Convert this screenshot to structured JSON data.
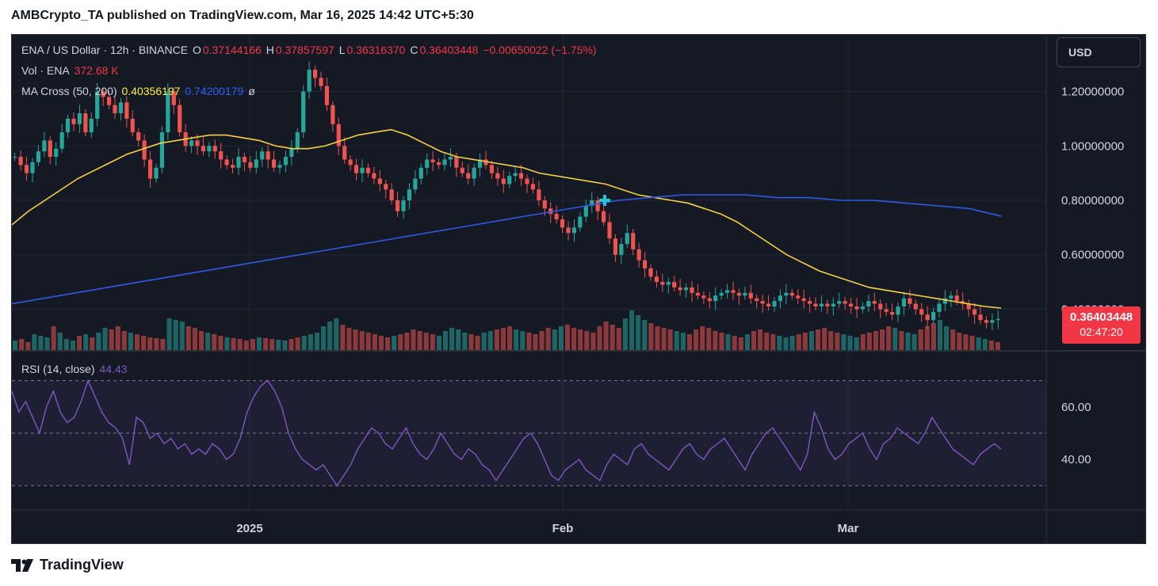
{
  "header": {
    "publisher": "AMBCrypto_TA published on TradingView.com, Mar 16, 2025 14:42 UTC+5:30"
  },
  "legend": {
    "symbol": "ENA / US Dollar · 12h · BINANCE",
    "o_label": "O",
    "o_value": "0.37144166",
    "h_label": "H",
    "h_value": "0.37857597",
    "l_label": "L",
    "l_value": "0.36316370",
    "c_label": "C",
    "c_value": "0.36403448",
    "change": "−0.00650022 (−1.75%)",
    "vol_label": "Vol · ENA",
    "vol_value": "372.68 K",
    "ma_label": "MA Cross (50, 200)",
    "ma50_value": "0.40356197",
    "ma200_value": "0.74200179",
    "ma_extra": "ø",
    "rsi_label": "RSI (14, close)",
    "rsi_value": "44.43"
  },
  "toolbar": {
    "currency": "USD"
  },
  "price_tag": {
    "price": "0.36403448",
    "countdown": "02:47:20"
  },
  "footer": {
    "brand": "TradingView"
  },
  "colors": {
    "up": "#26a69a",
    "down": "#ef5350",
    "ma50": "#f7d046",
    "ma200": "#2e5be8",
    "rsi": "#7e57c2",
    "cross_marker": "#26c6da",
    "background": "#151924"
  },
  "chart_data": [
    {
      "type": "candlestick",
      "title": "ENA / US Dollar · 12h · BINANCE",
      "y_ticks": [
        "1.20000000",
        "1.00000000",
        "0.80000000",
        "0.60000000",
        "0.40000000"
      ],
      "x_ticks": [
        "2025",
        "Feb",
        "Mar"
      ],
      "ylim": [
        0.25,
        1.35
      ],
      "series": [
        {
          "name": "ENA",
          "values": [
            0.96,
            0.93,
            0.9,
            0.94,
            0.98,
            1.02,
            0.96,
            0.99,
            1.05,
            1.1,
            1.08,
            1.12,
            1.05,
            1.1,
            1.2,
            1.18,
            1.15,
            1.12,
            1.16,
            1.1,
            1.05,
            1.02,
            0.95,
            0.88,
            0.92,
            1.05,
            1.2,
            1.15,
            1.05,
            1.0,
            1.02,
            1.0,
            0.98,
            1.0,
            0.98,
            0.95,
            0.93,
            0.92,
            0.96,
            0.94,
            0.92,
            0.95,
            0.98,
            0.95,
            0.92,
            0.93,
            0.96,
            0.99,
            1.05,
            1.2,
            1.28,
            1.25,
            1.22,
            1.15,
            1.08,
            1.0,
            0.95,
            0.93,
            0.9,
            0.92,
            0.9,
            0.88,
            0.86,
            0.84,
            0.8,
            0.76,
            0.8,
            0.84,
            0.88,
            0.92,
            0.95,
            0.94,
            0.93,
            0.95,
            0.96,
            0.92,
            0.9,
            0.88,
            0.92,
            0.95,
            0.93,
            0.9,
            0.88,
            0.86,
            0.89,
            0.9,
            0.88,
            0.86,
            0.84,
            0.8,
            0.77,
            0.75,
            0.73,
            0.7,
            0.68,
            0.7,
            0.74,
            0.78,
            0.8,
            0.76,
            0.72,
            0.66,
            0.6,
            0.64,
            0.68,
            0.62,
            0.58,
            0.55,
            0.52,
            0.5,
            0.49,
            0.5,
            0.48,
            0.47,
            0.48,
            0.46,
            0.45,
            0.44,
            0.43,
            0.45,
            0.46,
            0.47,
            0.46,
            0.45,
            0.46,
            0.44,
            0.43,
            0.42,
            0.41,
            0.43,
            0.45,
            0.46,
            0.45,
            0.44,
            0.43,
            0.42,
            0.41,
            0.42,
            0.41,
            0.42,
            0.43,
            0.42,
            0.41,
            0.4,
            0.41,
            0.43,
            0.42,
            0.4,
            0.39,
            0.38,
            0.41,
            0.44,
            0.42,
            0.4,
            0.38,
            0.36,
            0.39,
            0.42,
            0.44,
            0.45,
            0.43,
            0.42,
            0.4,
            0.38,
            0.36,
            0.35,
            0.36,
            0.364
          ]
        },
        {
          "name": "MA (50)",
          "values": [
            0.71,
            0.76,
            0.8,
            0.84,
            0.88,
            0.91,
            0.94,
            0.97,
            0.99,
            1.01,
            1.02,
            1.03,
            1.04,
            1.04,
            1.03,
            1.02,
            1.0,
            0.99,
            0.99,
            1.0,
            1.02,
            1.04,
            1.05,
            1.06,
            1.04,
            1.01,
            0.98,
            0.96,
            0.95,
            0.94,
            0.93,
            0.92,
            0.9,
            0.89,
            0.88,
            0.87,
            0.86,
            0.84,
            0.82,
            0.81,
            0.8,
            0.79,
            0.77,
            0.75,
            0.72,
            0.68,
            0.64,
            0.6,
            0.57,
            0.54,
            0.52,
            0.5,
            0.48,
            0.47,
            0.46,
            0.45,
            0.44,
            0.43,
            0.42,
            0.41,
            0.404
          ]
        },
        {
          "name": "MA (200)",
          "values": [
            0.42,
            0.44,
            0.46,
            0.48,
            0.5,
            0.52,
            0.54,
            0.56,
            0.58,
            0.6,
            0.62,
            0.64,
            0.66,
            0.68,
            0.7,
            0.72,
            0.74,
            0.76,
            0.78,
            0.8,
            0.81,
            0.82,
            0.82,
            0.82,
            0.81,
            0.81,
            0.8,
            0.8,
            0.79,
            0.78,
            0.77,
            0.742
          ]
        }
      ]
    },
    {
      "type": "bar",
      "title": "Vol · ENA",
      "series": [
        {
          "name": "Vol · ENA",
          "values": [
            12,
            14,
            10,
            20,
            18,
            16,
            30,
            22,
            14,
            12,
            18,
            20,
            16,
            22,
            28,
            26,
            30,
            24,
            22,
            20,
            18,
            16,
            15,
            14,
            40,
            38,
            36,
            30,
            28,
            24,
            22,
            20,
            18,
            16,
            15,
            14,
            12,
            14,
            16,
            15,
            14,
            13,
            12,
            14,
            16,
            18,
            20,
            22,
            30,
            36,
            40,
            32,
            28,
            26,
            24,
            22,
            20,
            18,
            16,
            18,
            20,
            22,
            26,
            24,
            22,
            20,
            18,
            24,
            28,
            26,
            22,
            20,
            18,
            22,
            24,
            26,
            28,
            30,
            26,
            24,
            22,
            20,
            24,
            28,
            26,
            30,
            32,
            28,
            26,
            24,
            22,
            30,
            36,
            32,
            28,
            40,
            50,
            44,
            38,
            34,
            30,
            28,
            26,
            24,
            22,
            20,
            26,
            30,
            28,
            24,
            22,
            20,
            18,
            16,
            20,
            24,
            26,
            22,
            20,
            18,
            16,
            18,
            20,
            22,
            24,
            26,
            28,
            24,
            22,
            20,
            18,
            16,
            20,
            22,
            24,
            26,
            30,
            28,
            24,
            22,
            20,
            26,
            30,
            34,
            38,
            30,
            26,
            22,
            20,
            18,
            16,
            14,
            12,
            10
          ]
        }
      ]
    },
    {
      "type": "line",
      "title": "RSI (14, close)",
      "y_ticks": [
        "60.00",
        "40.00"
      ],
      "ylim": [
        25,
        75
      ],
      "series": [
        {
          "name": "RSI (14, close)",
          "values": [
            66,
            58,
            62,
            56,
            50,
            60,
            66,
            58,
            54,
            56,
            62,
            70,
            64,
            58,
            54,
            52,
            48,
            38,
            56,
            54,
            48,
            50,
            46,
            48,
            44,
            46,
            42,
            44,
            42,
            46,
            44,
            40,
            42,
            48,
            58,
            64,
            68,
            70,
            66,
            60,
            50,
            44,
            40,
            38,
            36,
            38,
            34,
            30,
            34,
            38,
            44,
            48,
            52,
            50,
            46,
            44,
            48,
            52,
            46,
            42,
            40,
            44,
            50,
            46,
            42,
            40,
            44,
            42,
            38,
            36,
            32,
            36,
            40,
            44,
            48,
            50,
            46,
            40,
            34,
            32,
            36,
            38,
            40,
            36,
            34,
            32,
            38,
            42,
            40,
            38,
            44,
            46,
            42,
            40,
            38,
            36,
            40,
            44,
            46,
            42,
            40,
            44,
            46,
            48,
            44,
            40,
            36,
            42,
            46,
            50,
            52,
            48,
            44,
            40,
            36,
            42,
            58,
            52,
            44,
            40,
            42,
            46,
            48,
            50,
            44,
            40,
            46,
            48,
            52,
            50,
            48,
            46,
            50,
            56,
            52,
            48,
            44,
            42,
            40,
            38,
            42,
            44,
            46,
            44
          ]
        }
      ]
    }
  ]
}
